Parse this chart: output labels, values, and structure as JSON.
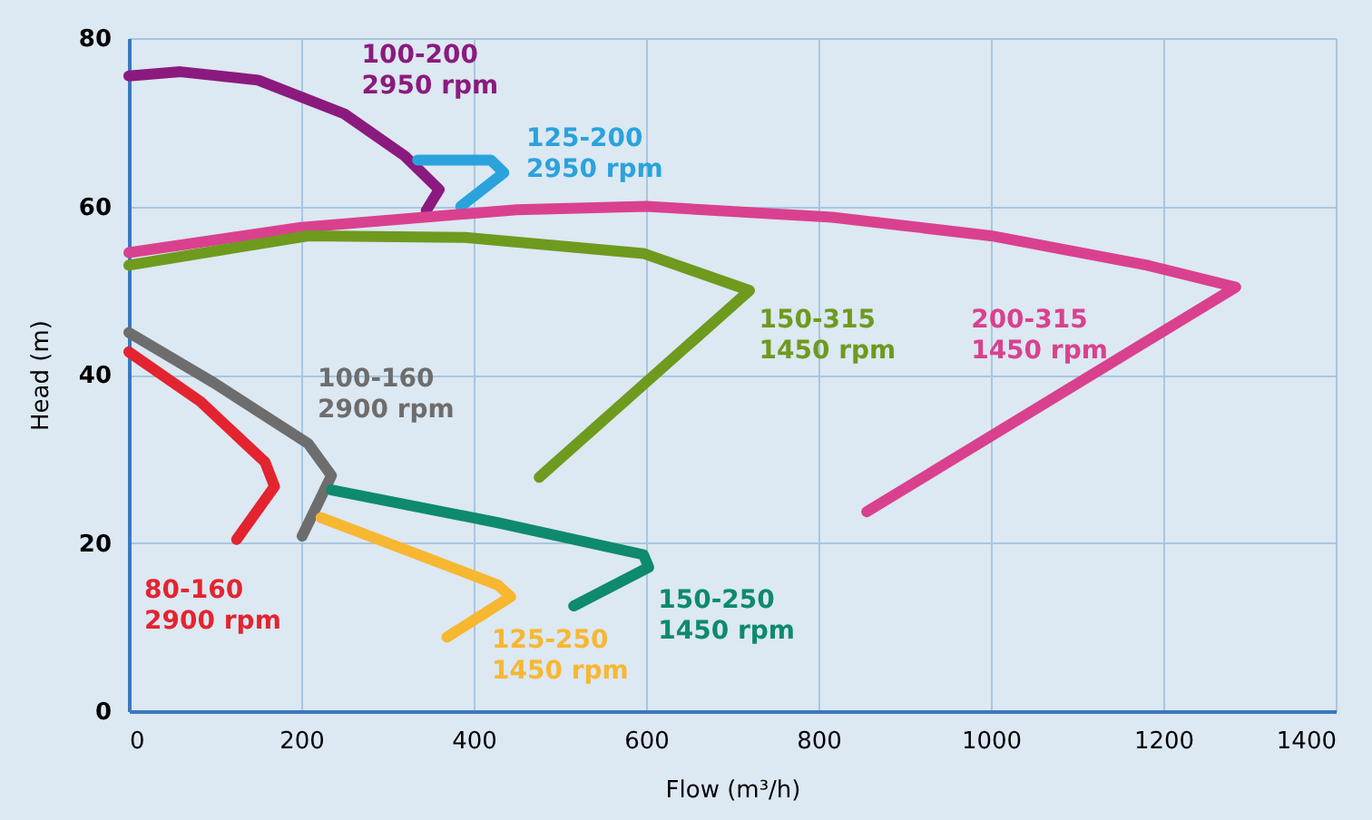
{
  "chart_data": {
    "type": "line",
    "xlabel": "Flow (m³/h)",
    "ylabel": "Head (m)",
    "xlim": [
      0,
      1400
    ],
    "xticks": [
      0,
      200,
      400,
      600,
      800,
      1000,
      1200,
      1400
    ],
    "ylim": [
      0,
      80
    ],
    "yticks": [
      0,
      20,
      40,
      60,
      80
    ],
    "grid": true,
    "marker": "none",
    "line_style": "solid",
    "series": [
      {
        "name": "100-200 2950 rpm",
        "color": "#8b1a7e",
        "x": [
          0,
          60,
          150,
          250,
          320,
          360,
          345
        ],
        "values": [
          75.5,
          76,
          75,
          71,
          66,
          62,
          59.5
        ]
      },
      {
        "name": "125-200 2950 rpm",
        "color": "#2aa3dc",
        "x": [
          335,
          420,
          435,
          385
        ],
        "values": [
          65.5,
          65.5,
          64,
          60
        ]
      },
      {
        "name": "200-315 1450 rpm",
        "color": "#d9418f",
        "x": [
          0,
          200,
          450,
          600,
          816,
          1000,
          1181,
          1284,
          856
        ],
        "values": [
          54.5,
          57.5,
          59.6,
          60,
          58.7,
          56.5,
          53,
          50.4,
          23.7
        ]
      },
      {
        "name": "150-315 1450 rpm",
        "color": "#6e9a1e",
        "x": [
          0,
          208,
          390,
          597,
          720,
          476
        ],
        "values": [
          53,
          56.5,
          56.3,
          54.4,
          50,
          27.8
        ]
      },
      {
        "name": "100-160 2900 rpm",
        "color": "#6d6d6d",
        "x": [
          0,
          99,
          208,
          235,
          201
        ],
        "values": [
          45,
          39,
          31.8,
          28,
          20.8
        ]
      },
      {
        "name": "80-160 2900 rpm",
        "color": "#e32430",
        "x": [
          0,
          83,
          158,
          169,
          125
        ],
        "values": [
          42.7,
          36.8,
          29.6,
          26.7,
          20.4
        ]
      },
      {
        "name": "150-250 1450 rpm",
        "color": "#0e8a6e",
        "x": [
          235,
          428,
          597,
          603,
          516
        ],
        "values": [
          26.3,
          22.4,
          18.6,
          17.1,
          12.5
        ]
      },
      {
        "name": "125-250 1450 rpm",
        "color": "#f7b731",
        "x": [
          223,
          428,
          443,
          369
        ],
        "values": [
          23,
          15,
          13.6,
          8.8
        ]
      }
    ]
  }
}
